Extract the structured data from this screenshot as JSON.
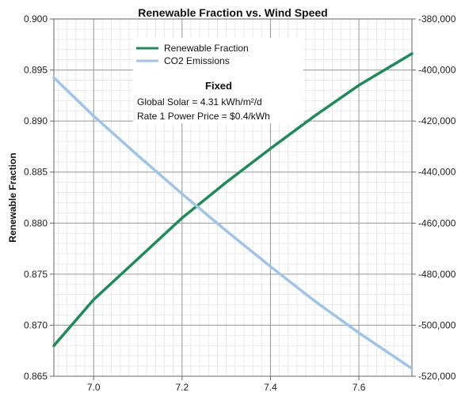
{
  "chart_data": {
    "type": "line",
    "title": "Renewable Fraction vs. Wind Speed",
    "xlabel": "",
    "ylabel": "Renewable Fraction",
    "y2label": "",
    "xlim": [
      6.91,
      7.72
    ],
    "ylim": [
      0.865,
      0.9
    ],
    "y2lim": [
      -520000,
      -380000
    ],
    "grid": true,
    "legend_position": "top-center",
    "x_ticks": [
      "7.0",
      "7.2",
      "7.4",
      "7.6"
    ],
    "y_ticks": [
      "0.900",
      "0.895",
      "0.890",
      "0.885",
      "0.880",
      "0.875",
      "0.870",
      "0.865"
    ],
    "y2_ticks": [
      "-380,000",
      "-400,000",
      "-420,000",
      "-440,000",
      "-460,000",
      "-480,000",
      "-500,000",
      "-520,000"
    ],
    "series": [
      {
        "name": "Renewable Fraction",
        "axis": "left",
        "color": "#1f8a5a",
        "x": [
          6.91,
          7.0,
          7.1,
          7.2,
          7.3,
          7.4,
          7.5,
          7.6,
          7.72
        ],
        "y": [
          0.868,
          0.8725,
          0.8765,
          0.8805,
          0.884,
          0.8873,
          0.8905,
          0.8935,
          0.8966
        ]
      },
      {
        "name": "CO2 Emissions",
        "axis": "right",
        "color": "#9ec4ea",
        "x": [
          6.91,
          7.0,
          7.1,
          7.2,
          7.3,
          7.4,
          7.5,
          7.6,
          7.72
        ],
        "y": [
          -403000,
          -418000,
          -433500,
          -448500,
          -463000,
          -477000,
          -490500,
          -503000,
          -517000
        ]
      }
    ],
    "annotation": {
      "title": "Fixed",
      "lines": [
        "Global Solar = 4.31 kWh/m²/d",
        "Rate 1 Power Price = $0.4/kWh"
      ]
    }
  }
}
